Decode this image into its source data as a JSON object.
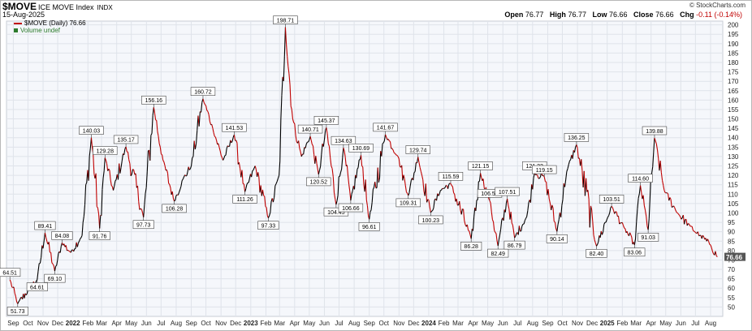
{
  "header": {
    "symbol": "$MOVE",
    "name": "ICE MOVE Index",
    "exchange": "INDX",
    "date": "15-Aug-2025",
    "copyright": "© StockCharts.com",
    "open_label": "Open",
    "open": "76.77",
    "high_label": "High",
    "high": "76.77",
    "low_label": "Low",
    "low": "76.66",
    "close_label": "Close",
    "close": "76.66",
    "chg_label": "Chg",
    "chg": "-0.11 (-0.14%)"
  },
  "legend": {
    "series": "$MOVE (Daily) 76.66",
    "volume": "Volume undef"
  },
  "chart_data": {
    "type": "line",
    "colors": {
      "up": "#000000",
      "down": "#c00000",
      "last_price_bg": "#555555"
    },
    "ylim": [
      45,
      202
    ],
    "yticks": [
      50,
      55,
      60,
      65,
      70,
      75,
      80,
      85,
      90,
      95,
      100,
      105,
      110,
      115,
      120,
      125,
      130,
      135,
      140,
      145,
      150,
      155,
      160,
      165,
      170,
      175,
      180,
      185,
      190,
      195,
      200
    ],
    "xtick_labels": [
      "Sep",
      "Oct",
      "Nov",
      "Dec",
      "2022",
      "Feb",
      "Mar",
      "Apr",
      "May",
      "Jun",
      "Jul",
      "Aug",
      "Sep",
      "Oct",
      "Nov",
      "Dec",
      "2023",
      "Feb",
      "Mar",
      "Apr",
      "May",
      "Jun",
      "Jul",
      "Aug",
      "Sep",
      "Oct",
      "Nov",
      "Dec",
      "2024",
      "Feb",
      "Mar",
      "Apr",
      "May",
      "Jun",
      "Jul",
      "Aug",
      "Sep",
      "Oct",
      "Nov",
      "Dec",
      "2025",
      "Feb",
      "Mar",
      "Apr",
      "May",
      "Jun",
      "Jul",
      "Aug"
    ],
    "bold_xtick_labels": [
      "2022",
      "2023",
      "2024",
      "2025"
    ],
    "last_value": "76.66",
    "grid": true,
    "series": [
      {
        "points": [
          [
            "2021-08-25",
            64.51
          ],
          [
            "2021-09-10",
            51.73
          ],
          [
            "2021-10-05",
            60
          ],
          [
            "2021-10-20",
            64.61
          ],
          [
            "2021-11-05",
            89.41
          ],
          [
            "2021-11-25",
            69.1
          ],
          [
            "2021-12-10",
            84.08
          ],
          [
            "2021-12-28",
            79
          ],
          [
            "2022-01-20",
            88
          ],
          [
            "2022-02-08",
            140.03
          ],
          [
            "2022-02-25",
            91.76
          ],
          [
            "2022-03-08",
            129.28
          ],
          [
            "2022-03-25",
            112
          ],
          [
            "2022-04-20",
            135.17
          ],
          [
            "2022-05-26",
            97.73
          ],
          [
            "2022-06-16",
            156.16
          ],
          [
            "2022-07-05",
            128
          ],
          [
            "2022-07-28",
            106.28
          ],
          [
            "2022-08-15",
            118
          ],
          [
            "2022-09-01",
            125
          ],
          [
            "2022-09-25",
            160.72
          ],
          [
            "2022-10-15",
            145
          ],
          [
            "2022-11-05",
            128
          ],
          [
            "2022-11-28",
            141.53
          ],
          [
            "2022-12-20",
            111.26
          ],
          [
            "2023-01-10",
            125
          ],
          [
            "2023-02-06",
            97.33
          ],
          [
            "2023-02-28",
            120
          ],
          [
            "2023-03-13",
            198.71
          ],
          [
            "2023-03-28",
            150
          ],
          [
            "2023-04-15",
            130
          ],
          [
            "2023-05-03",
            140.71
          ],
          [
            "2023-05-20",
            120.52
          ],
          [
            "2023-06-05",
            145.37
          ],
          [
            "2023-06-25",
            104.45
          ],
          [
            "2023-07-10",
            134.63
          ],
          [
            "2023-07-25",
            106.66
          ],
          [
            "2023-08-15",
            130.69
          ],
          [
            "2023-09-01",
            96.61
          ],
          [
            "2023-10-04",
            141.67
          ],
          [
            "2023-10-30",
            130
          ],
          [
            "2023-11-20",
            109.31
          ],
          [
            "2023-12-10",
            129.74
          ],
          [
            "2024-01-05",
            100.23
          ],
          [
            "2024-01-25",
            112
          ],
          [
            "2024-02-15",
            115.59
          ],
          [
            "2024-03-28",
            86.28
          ],
          [
            "2024-04-16",
            121.15
          ],
          [
            "2024-05-05",
            106.55
          ],
          [
            "2024-05-22",
            82.49
          ],
          [
            "2024-06-10",
            107.51
          ],
          [
            "2024-06-25",
            86.79
          ],
          [
            "2024-07-20",
            98
          ],
          [
            "2024-08-05",
            121.23
          ],
          [
            "2024-08-25",
            119.15
          ],
          [
            "2024-09-20",
            90.14
          ],
          [
            "2024-10-10",
            122
          ],
          [
            "2024-10-30",
            136.25
          ],
          [
            "2024-12-10",
            82.4
          ],
          [
            "2025-01-10",
            103.51
          ],
          [
            "2025-02-05",
            92
          ],
          [
            "2025-02-26",
            83.06
          ],
          [
            "2025-03-10",
            114.6
          ],
          [
            "2025-03-26",
            91.03
          ],
          [
            "2025-04-08",
            139.88
          ],
          [
            "2025-04-28",
            112
          ],
          [
            "2025-05-25",
            100
          ],
          [
            "2025-06-20",
            93
          ],
          [
            "2025-07-10",
            88
          ],
          [
            "2025-08-01",
            83
          ],
          [
            "2025-08-15",
            76.66
          ]
        ]
      }
    ],
    "annotations": [
      {
        "date": "2021-08-25",
        "value": 64.51,
        "text": "64.51",
        "pos": "above"
      },
      {
        "date": "2021-09-10",
        "value": 51.73,
        "text": "51.73",
        "pos": "below"
      },
      {
        "date": "2021-10-20",
        "value": 64.61,
        "text": "64.61",
        "pos": "below"
      },
      {
        "date": "2021-11-05",
        "value": 89.41,
        "text": "89.41",
        "pos": "above"
      },
      {
        "date": "2021-11-25",
        "value": 69.1,
        "text": "69.10",
        "pos": "below"
      },
      {
        "date": "2021-12-10",
        "value": 84.08,
        "text": "84.08",
        "pos": "above"
      },
      {
        "date": "2022-02-08",
        "value": 140.03,
        "text": "140.03",
        "pos": "above"
      },
      {
        "date": "2022-02-25",
        "value": 91.76,
        "text": "91.76",
        "pos": "below"
      },
      {
        "date": "2022-03-08",
        "value": 129.28,
        "text": "129.28",
        "pos": "above"
      },
      {
        "date": "2022-04-20",
        "value": 135.17,
        "text": "135.17",
        "pos": "above"
      },
      {
        "date": "2022-05-26",
        "value": 97.73,
        "text": "97.73",
        "pos": "below"
      },
      {
        "date": "2022-06-16",
        "value": 156.16,
        "text": "156.16",
        "pos": "above"
      },
      {
        "date": "2022-07-28",
        "value": 106.28,
        "text": "106.28",
        "pos": "below"
      },
      {
        "date": "2022-09-25",
        "value": 160.72,
        "text": "160.72",
        "pos": "above"
      },
      {
        "date": "2022-11-28",
        "value": 141.53,
        "text": "141.53",
        "pos": "above"
      },
      {
        "date": "2022-12-20",
        "value": 111.26,
        "text": "111.26",
        "pos": "below"
      },
      {
        "date": "2023-02-06",
        "value": 97.33,
        "text": "97.33",
        "pos": "below"
      },
      {
        "date": "2023-03-13",
        "value": 198.71,
        "text": "198.71",
        "pos": "above"
      },
      {
        "date": "2023-05-03",
        "value": 140.71,
        "text": "140.71",
        "pos": "above"
      },
      {
        "date": "2023-05-20",
        "value": 120.52,
        "text": "120.52",
        "pos": "below"
      },
      {
        "date": "2023-06-05",
        "value": 145.37,
        "text": "145.37",
        "pos": "above"
      },
      {
        "date": "2023-06-25",
        "value": 104.45,
        "text": "104.45",
        "pos": "below"
      },
      {
        "date": "2023-07-10",
        "value": 134.63,
        "text": "134.63",
        "pos": "above"
      },
      {
        "date": "2023-07-25",
        "value": 106.66,
        "text": "106.66",
        "pos": "below"
      },
      {
        "date": "2023-08-15",
        "value": 130.69,
        "text": "130.69",
        "pos": "above"
      },
      {
        "date": "2023-09-01",
        "value": 96.61,
        "text": "96.61",
        "pos": "below"
      },
      {
        "date": "2023-10-04",
        "value": 141.67,
        "text": "141.67",
        "pos": "above"
      },
      {
        "date": "2023-11-20",
        "value": 109.31,
        "text": "109.31",
        "pos": "below"
      },
      {
        "date": "2023-12-10",
        "value": 129.74,
        "text": "129.74",
        "pos": "above"
      },
      {
        "date": "2024-01-05",
        "value": 100.23,
        "text": "100.23",
        "pos": "below"
      },
      {
        "date": "2024-02-15",
        "value": 115.59,
        "text": "115.59",
        "pos": "above"
      },
      {
        "date": "2024-03-28",
        "value": 86.28,
        "text": "86.28",
        "pos": "below"
      },
      {
        "date": "2024-04-16",
        "value": 121.15,
        "text": "121.15",
        "pos": "above"
      },
      {
        "date": "2024-05-05",
        "value": 106.55,
        "text": "106.55",
        "pos": "above"
      },
      {
        "date": "2024-05-22",
        "value": 82.49,
        "text": "82.49",
        "pos": "below"
      },
      {
        "date": "2024-06-10",
        "value": 107.51,
        "text": "107.51",
        "pos": "above"
      },
      {
        "date": "2024-06-25",
        "value": 86.79,
        "text": "86.79",
        "pos": "below"
      },
      {
        "date": "2024-08-05",
        "value": 121.23,
        "text": "121.23",
        "pos": "above"
      },
      {
        "date": "2024-08-25",
        "value": 119.15,
        "text": "119.15",
        "pos": "above"
      },
      {
        "date": "2024-09-20",
        "value": 90.14,
        "text": "90.14",
        "pos": "below"
      },
      {
        "date": "2024-10-30",
        "value": 136.25,
        "text": "136.25",
        "pos": "above"
      },
      {
        "date": "2024-12-10",
        "value": 82.4,
        "text": "82.40",
        "pos": "below"
      },
      {
        "date": "2025-01-10",
        "value": 103.51,
        "text": "103.51",
        "pos": "above"
      },
      {
        "date": "2025-02-26",
        "value": 83.06,
        "text": "83.06",
        "pos": "below"
      },
      {
        "date": "2025-03-10",
        "value": 114.6,
        "text": "114.60",
        "pos": "above"
      },
      {
        "date": "2025-03-26",
        "value": 91.03,
        "text": "91.03",
        "pos": "below"
      },
      {
        "date": "2025-04-08",
        "value": 139.88,
        "text": "139.88",
        "pos": "above"
      }
    ]
  }
}
